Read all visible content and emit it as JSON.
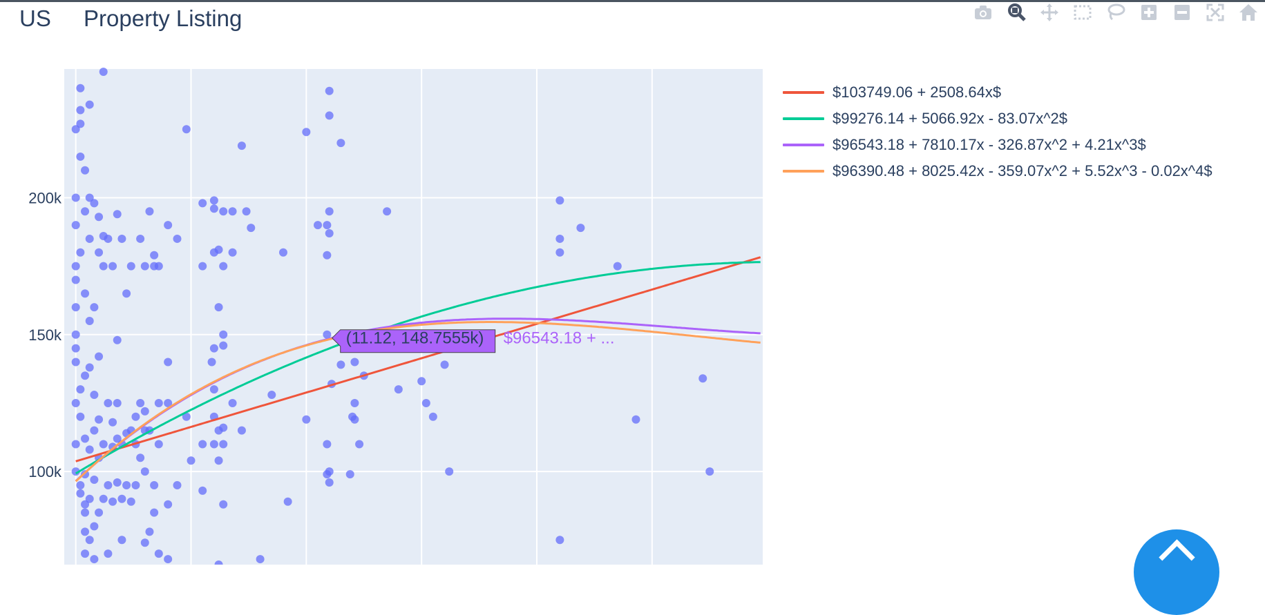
{
  "header": {
    "country": "US",
    "title": "Property Listing"
  },
  "modebar": [
    {
      "name": "camera-icon"
    },
    {
      "name": "zoom-icon"
    },
    {
      "name": "pan-icon"
    },
    {
      "name": "box-select-icon"
    },
    {
      "name": "lasso-select-icon"
    },
    {
      "name": "zoom-in-icon"
    },
    {
      "name": "zoom-out-icon"
    },
    {
      "name": "autoscale-icon"
    },
    {
      "name": "reset-axes-home-icon"
    }
  ],
  "colors": {
    "plot_bg": "#e5ecf6",
    "grid": "#ffffff",
    "points": "#636efa",
    "linear": "#ef553b",
    "quadratic": "#00cc96",
    "cubic": "#ab63fa",
    "quartic": "#ffa15a"
  },
  "chart_data": {
    "type": "scatter",
    "title": "",
    "xlabel": "",
    "ylabel": "",
    "xlim": [
      -0.5,
      29.8
    ],
    "ylim": [
      66000,
      247000
    ],
    "grid": true,
    "y_ticks": [
      {
        "value": 100000,
        "label": "100k"
      },
      {
        "value": 150000,
        "label": "150k"
      },
      {
        "value": 200000,
        "label": "200k"
      }
    ],
    "legend_position": "right",
    "points": [
      [
        0,
        100000
      ],
      [
        0,
        110000
      ],
      [
        0,
        125000
      ],
      [
        0,
        140000
      ],
      [
        0,
        145000
      ],
      [
        0,
        150000
      ],
      [
        0,
        160000
      ],
      [
        0,
        170000
      ],
      [
        0,
        175000
      ],
      [
        0,
        190000
      ],
      [
        0,
        200000
      ],
      [
        0,
        225000
      ],
      [
        0.2,
        92000
      ],
      [
        0.2,
        95000
      ],
      [
        0.2,
        120000
      ],
      [
        0.2,
        130000
      ],
      [
        0.2,
        180000
      ],
      [
        0.2,
        215000
      ],
      [
        0.2,
        227000
      ],
      [
        0.2,
        232000
      ],
      [
        0.2,
        240000
      ],
      [
        0.4,
        70000
      ],
      [
        0.4,
        78000
      ],
      [
        0.4,
        85000
      ],
      [
        0.4,
        88000
      ],
      [
        0.4,
        99000
      ],
      [
        0.4,
        112000
      ],
      [
        0.4,
        135000
      ],
      [
        0.4,
        165000
      ],
      [
        0.4,
        195000
      ],
      [
        0.4,
        210000
      ],
      [
        0.6,
        75000
      ],
      [
        0.6,
        90000
      ],
      [
        0.6,
        108000
      ],
      [
        0.6,
        138000
      ],
      [
        0.6,
        155000
      ],
      [
        0.6,
        185000
      ],
      [
        0.6,
        200000
      ],
      [
        0.6,
        234000
      ],
      [
        0.8,
        68000
      ],
      [
        0.8,
        80000
      ],
      [
        0.8,
        97000
      ],
      [
        0.8,
        115000
      ],
      [
        0.8,
        128000
      ],
      [
        0.8,
        160000
      ],
      [
        0.8,
        198000
      ],
      [
        1.0,
        85000
      ],
      [
        1.0,
        105000
      ],
      [
        1.0,
        119000
      ],
      [
        1.0,
        142000
      ],
      [
        1.0,
        180000
      ],
      [
        1.0,
        193000
      ],
      [
        1.2,
        90000
      ],
      [
        1.2,
        110000
      ],
      [
        1.2,
        175000
      ],
      [
        1.2,
        186000
      ],
      [
        1.2,
        246000
      ],
      [
        1.4,
        70000
      ],
      [
        1.4,
        95000
      ],
      [
        1.4,
        125000
      ],
      [
        1.4,
        185000
      ],
      [
        1.6,
        89000
      ],
      [
        1.6,
        109000
      ],
      [
        1.6,
        118000
      ],
      [
        1.6,
        175000
      ],
      [
        1.8,
        96000
      ],
      [
        1.8,
        112000
      ],
      [
        1.8,
        125000
      ],
      [
        1.8,
        148000
      ],
      [
        1.8,
        194000
      ],
      [
        2.0,
        75000
      ],
      [
        2.0,
        90000
      ],
      [
        2.0,
        110000
      ],
      [
        2.0,
        185000
      ],
      [
        2.2,
        95000
      ],
      [
        2.2,
        114000
      ],
      [
        2.2,
        165000
      ],
      [
        2.4,
        89000
      ],
      [
        2.4,
        115000
      ],
      [
        2.4,
        175000
      ],
      [
        2.6,
        95000
      ],
      [
        2.6,
        110000
      ],
      [
        2.6,
        120000
      ],
      [
        2.8,
        105000
      ],
      [
        2.8,
        125000
      ],
      [
        2.8,
        185000
      ],
      [
        3.0,
        74000
      ],
      [
        3.0,
        100000
      ],
      [
        3.0,
        115000
      ],
      [
        3.0,
        122000
      ],
      [
        3.0,
        175000
      ],
      [
        3.2,
        78000
      ],
      [
        3.2,
        115000
      ],
      [
        3.2,
        195000
      ],
      [
        3.4,
        85000
      ],
      [
        3.4,
        95000
      ],
      [
        3.4,
        175000
      ],
      [
        3.4,
        179000
      ],
      [
        3.6,
        70000
      ],
      [
        3.6,
        110000
      ],
      [
        3.6,
        125000
      ],
      [
        3.6,
        175000
      ],
      [
        4.0,
        68000
      ],
      [
        4.0,
        88000
      ],
      [
        4.0,
        125000
      ],
      [
        4.0,
        140000
      ],
      [
        4.0,
        190000
      ],
      [
        4.4,
        95000
      ],
      [
        4.4,
        185000
      ],
      [
        4.8,
        120000
      ],
      [
        4.8,
        225000
      ],
      [
        5.0,
        104000
      ],
      [
        5.5,
        93000
      ],
      [
        5.5,
        110000
      ],
      [
        5.5,
        175000
      ],
      [
        5.5,
        198000
      ],
      [
        5.9,
        140000
      ],
      [
        6.0,
        110000
      ],
      [
        6.0,
        120000
      ],
      [
        6.0,
        130000
      ],
      [
        6.0,
        145000
      ],
      [
        6.0,
        180000
      ],
      [
        6.0,
        196000
      ],
      [
        6.0,
        199000
      ],
      [
        6.2,
        66000
      ],
      [
        6.2,
        104000
      ],
      [
        6.2,
        115000
      ],
      [
        6.2,
        160000
      ],
      [
        6.2,
        181000
      ],
      [
        6.4,
        88000
      ],
      [
        6.4,
        110000
      ],
      [
        6.4,
        116000
      ],
      [
        6.4,
        150000
      ],
      [
        6.4,
        146000
      ],
      [
        6.4,
        175000
      ],
      [
        6.4,
        195000
      ],
      [
        6.8,
        125000
      ],
      [
        6.8,
        180000
      ],
      [
        6.8,
        195000
      ],
      [
        7.2,
        115000
      ],
      [
        7.2,
        219000
      ],
      [
        7.4,
        195000
      ],
      [
        7.6,
        189000
      ],
      [
        8.0,
        68000
      ],
      [
        8.5,
        128000
      ],
      [
        9.0,
        180000
      ],
      [
        9.2,
        89000
      ],
      [
        10.0,
        119000
      ],
      [
        10.0,
        224000
      ],
      [
        10.5,
        190000
      ],
      [
        10.9,
        99000
      ],
      [
        10.9,
        110000
      ],
      [
        10.9,
        150000
      ],
      [
        10.9,
        179000
      ],
      [
        10.9,
        190000
      ],
      [
        11.0,
        96000
      ],
      [
        11.0,
        100000
      ],
      [
        11.0,
        187000
      ],
      [
        11.0,
        195000
      ],
      [
        11.0,
        230000
      ],
      [
        11.0,
        239000
      ],
      [
        11.1,
        132000
      ],
      [
        11.5,
        139000
      ],
      [
        11.5,
        220000
      ],
      [
        11.9,
        99000
      ],
      [
        12.0,
        120000
      ],
      [
        12.1,
        119000
      ],
      [
        12.1,
        125000
      ],
      [
        12.1,
        140000
      ],
      [
        12.3,
        110000
      ],
      [
        12.5,
        135000
      ],
      [
        13.0,
        150000
      ],
      [
        13.5,
        195000
      ],
      [
        14.0,
        130000
      ],
      [
        15.0,
        133000
      ],
      [
        15.2,
        125000
      ],
      [
        15.5,
        120000
      ],
      [
        16.0,
        139000
      ],
      [
        16.2,
        100000
      ],
      [
        21.0,
        75000
      ],
      [
        21.0,
        180000
      ],
      [
        21.0,
        185000
      ],
      [
        21.0,
        199000
      ],
      [
        21.9,
        189000
      ],
      [
        23.5,
        175000
      ],
      [
        24.3,
        119000
      ],
      [
        27.2,
        134000
      ],
      [
        27.5,
        100000
      ]
    ],
    "series": [
      {
        "name": "$103749.06 + 2508.64x$",
        "coef": [
          103749.06,
          2508.64
        ],
        "color": "#ef553b"
      },
      {
        "name": "$99276.14 + 5066.92x - 83.07x^2$",
        "coef": [
          99276.14,
          5066.92,
          -83.07
        ],
        "color": "#00cc96"
      },
      {
        "name": "$96543.18 + 7810.17x - 326.87x^2 + 4.21x^3$",
        "coef": [
          96543.18,
          7810.17,
          -326.87,
          4.21
        ],
        "color": "#ab63fa"
      },
      {
        "name": "$96390.48 + 8025.42x - 359.07x^2 + 5.52x^3 - 0.02x^4$",
        "coef": [
          96390.48,
          8025.42,
          -359.07,
          5.52,
          -0.02
        ],
        "color": "#ffa15a"
      }
    ],
    "hover": {
      "x": 11.12,
      "label": "(11.12, 148.7555k)",
      "name": "$96543.18 + ...",
      "color": "#ab63fa"
    }
  }
}
